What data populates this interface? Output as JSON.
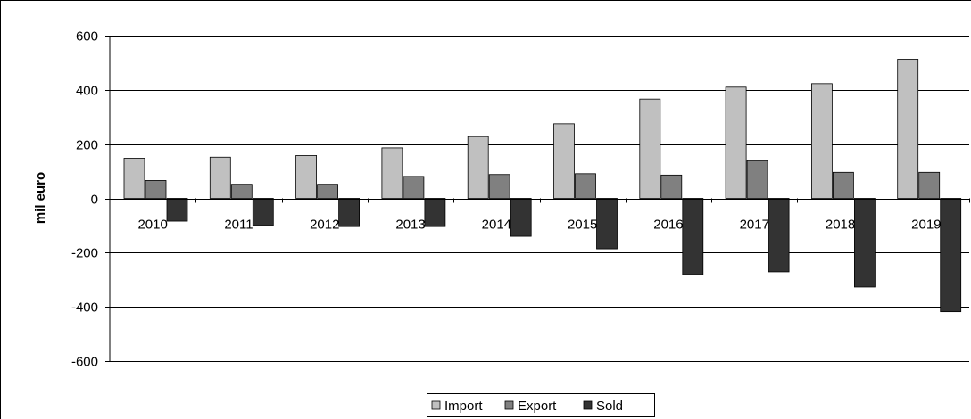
{
  "chart_data": {
    "type": "bar",
    "title": "",
    "xlabel": "",
    "ylabel": "mil euro",
    "ylim": [
      -600,
      600
    ],
    "yticks": [
      600,
      400,
      200,
      0,
      -200,
      -400,
      -600
    ],
    "grid": true,
    "legend_position": "bottom",
    "categories": [
      "2010",
      "2011",
      "2012",
      "2013",
      "2014",
      "2015",
      "2016",
      "2017",
      "2018",
      "2019"
    ],
    "series": [
      {
        "name": "Import",
        "color": "#c0c0c0",
        "values": [
          148,
          152,
          158,
          186,
          228,
          275,
          366,
          410,
          423,
          513
        ]
      },
      {
        "name": "Export",
        "color": "#808080",
        "values": [
          66,
          52,
          52,
          81,
          88,
          91,
          86,
          139,
          96,
          96
        ]
      },
      {
        "name": "Sold",
        "color": "#333333",
        "values": [
          -84,
          -100,
          -104,
          -104,
          -140,
          -186,
          -281,
          -271,
          -327,
          -418
        ]
      }
    ]
  }
}
